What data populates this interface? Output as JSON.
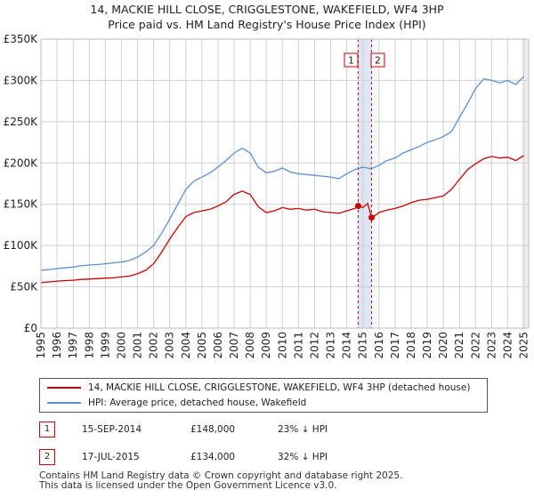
{
  "title_line1": "14, MACKIE HILL CLOSE, CRIGGLESTONE, WAKEFIELD, WF4 3HP",
  "title_line2": "Price paid vs. HM Land Registry's House Price Index (HPI)",
  "colors": {
    "property": "#cc0000",
    "hpi": "#5b8fd0",
    "band": "#dde6f5",
    "grid": "#d0d0d0",
    "marker": "#cc0000"
  },
  "chart_data": {
    "type": "line",
    "title": "14, MACKIE HILL CLOSE, CRIGGLESTONE, WAKEFIELD, WF4 3HP — Price paid vs. HM Land Registry's House Price Index (HPI)",
    "xlabel": "",
    "ylabel": "",
    "xlim": [
      1995,
      2025.3
    ],
    "ylim": [
      0,
      350000
    ],
    "y_ticks": [
      0,
      50000,
      100000,
      150000,
      200000,
      250000,
      300000,
      350000
    ],
    "y_tick_labels": [
      "£0",
      "£50K",
      "£100K",
      "£150K",
      "£200K",
      "£250K",
      "£300K",
      "£350K"
    ],
    "x_ticks": [
      1995,
      1996,
      1997,
      1998,
      1999,
      2000,
      2001,
      2002,
      2003,
      2004,
      2005,
      2006,
      2007,
      2008,
      2009,
      2010,
      2011,
      2012,
      2013,
      2014,
      2015,
      2016,
      2017,
      2018,
      2019,
      2020,
      2021,
      2022,
      2023,
      2024,
      2025
    ],
    "grid": true,
    "series": [
      {
        "name": "14, MACKIE HILL CLOSE, CRIGGLESTONE, WAKEFIELD, WF4 3HP (detached house)",
        "color": "#cc0000",
        "x": [
          1995,
          1995.5,
          1996,
          1996.5,
          1997,
          1997.5,
          1998,
          1998.5,
          1999,
          1999.5,
          2000,
          2000.5,
          2001,
          2001.5,
          2002,
          2002.5,
          2003,
          2003.5,
          2004,
          2004.5,
          2005,
          2005.5,
          2006,
          2006.5,
          2007,
          2007.5,
          2008,
          2008.5,
          2009,
          2009.5,
          2010,
          2010.5,
          2011,
          2011.5,
          2012,
          2012.5,
          2013,
          2013.5,
          2014,
          2014.5,
          2014.71,
          2015,
          2015.3,
          2015.54,
          2015.8,
          2016,
          2016.5,
          2017,
          2017.5,
          2018,
          2018.5,
          2019,
          2019.5,
          2020,
          2020.5,
          2021,
          2021.5,
          2022,
          2022.5,
          2023,
          2023.5,
          2024,
          2024.5,
          2025
        ],
        "values": [
          55000,
          56000,
          57000,
          57500,
          58000,
          59000,
          59500,
          60000,
          60500,
          61000,
          62000,
          63000,
          66000,
          70000,
          78000,
          92000,
          108000,
          122000,
          135000,
          140000,
          142000,
          144000,
          148000,
          153000,
          162000,
          166000,
          162000,
          147000,
          140000,
          142000,
          146000,
          144000,
          145000,
          143000,
          144000,
          141000,
          140000,
          139000,
          142000,
          145000,
          148000,
          146000,
          151000,
          134000,
          137000,
          140000,
          143000,
          145000,
          148000,
          152000,
          155000,
          156000,
          158000,
          160000,
          168000,
          180000,
          192000,
          199000,
          205000,
          208000,
          206000,
          207000,
          203000,
          209000
        ]
      },
      {
        "name": "HPI: Average price, detached house, Wakefield",
        "color": "#5b8fd0",
        "x": [
          1995,
          1995.5,
          1996,
          1996.5,
          1997,
          1997.5,
          1998,
          1998.5,
          1999,
          1999.5,
          2000,
          2000.5,
          2001,
          2001.5,
          2002,
          2002.5,
          2003,
          2003.5,
          2004,
          2004.5,
          2005,
          2005.5,
          2006,
          2006.5,
          2007,
          2007.5,
          2008,
          2008.5,
          2009,
          2009.5,
          2010,
          2010.5,
          2011,
          2011.5,
          2012,
          2012.5,
          2013,
          2013.5,
          2014,
          2014.5,
          2015,
          2015.5,
          2016,
          2016.5,
          2017,
          2017.5,
          2018,
          2018.5,
          2019,
          2019.5,
          2020,
          2020.5,
          2021,
          2021.5,
          2022,
          2022.5,
          2023,
          2023.5,
          2024,
          2024.5,
          2025
        ],
        "values": [
          70000,
          71000,
          72000,
          73000,
          74000,
          75500,
          76500,
          77000,
          78000,
          79000,
          80000,
          82000,
          86000,
          92000,
          100000,
          115000,
          132000,
          150000,
          168000,
          178000,
          183000,
          188000,
          195000,
          203000,
          212000,
          218000,
          212000,
          195000,
          188000,
          190000,
          194000,
          189000,
          187000,
          186000,
          185000,
          184000,
          183000,
          181000,
          187000,
          192000,
          195000,
          193000,
          197000,
          203000,
          206000,
          212000,
          216000,
          220000,
          225000,
          228000,
          232000,
          238000,
          255000,
          272000,
          290000,
          302000,
          300000,
          297000,
          300000,
          295000,
          305000
        ]
      }
    ],
    "sales": [
      {
        "label": "1",
        "x": 2014.71,
        "date": "15-SEP-2014",
        "price_value": 148000,
        "price": "£148,000",
        "hpi": "23% ↓ HPI"
      },
      {
        "label": "2",
        "x": 2015.54,
        "date": "17-JUL-2015",
        "price_value": 134000,
        "price": "£134,000",
        "hpi": "32% ↓ HPI"
      }
    ]
  },
  "legend": {
    "property": "14, MACKIE HILL CLOSE, CRIGGLESTONE, WAKEFIELD, WF4 3HP (detached house)",
    "hpi": "HPI: Average price, detached house, Wakefield"
  },
  "footer_line1": "Contains HM Land Registry data © Crown copyright and database right 2025.",
  "footer_line2": "This data is licensed under the Open Government Licence v3.0."
}
